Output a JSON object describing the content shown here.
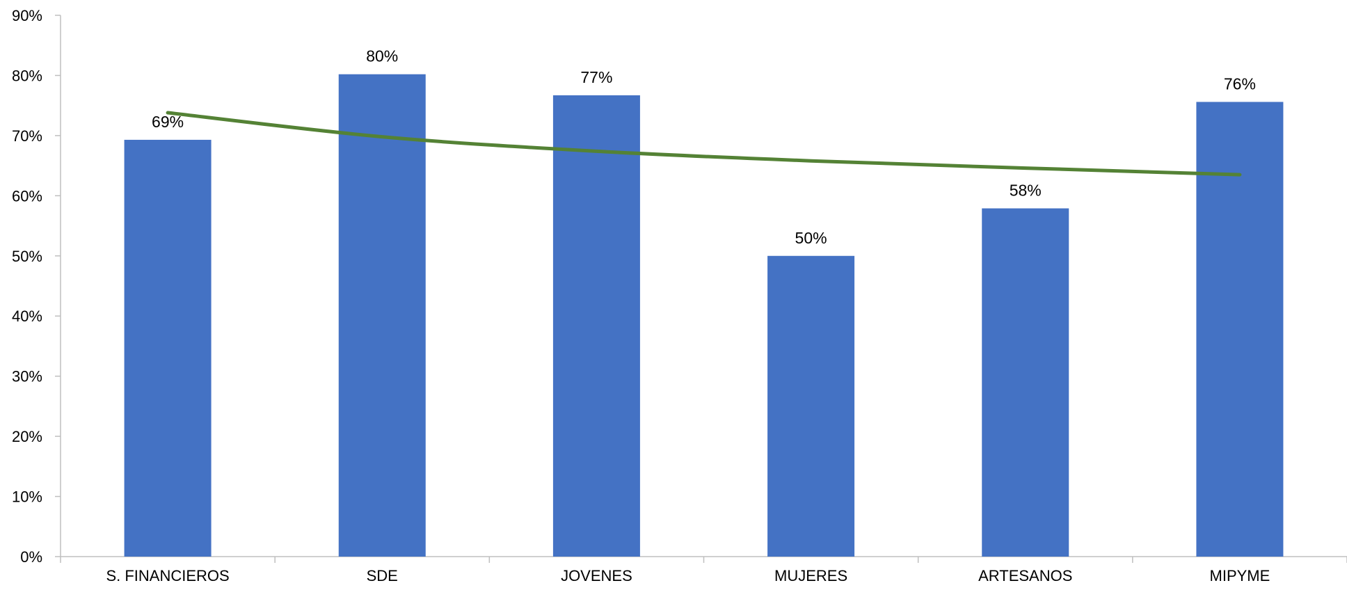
{
  "chart_data": {
    "type": "bar",
    "categories": [
      "S. FINANCIEROS",
      "SDE",
      "JOVENES",
      "MUJERES",
      "ARTESANOS",
      "MIPYME"
    ],
    "values": [
      69.3,
      80.2,
      76.7,
      50.0,
      57.9,
      75.6
    ],
    "data_labels": [
      "69%",
      "80%",
      "77%",
      "50%",
      "58%",
      "76%"
    ],
    "ylim": [
      0,
      90
    ],
    "yticks": [
      0,
      10,
      20,
      30,
      40,
      50,
      60,
      70,
      80,
      90
    ],
    "ytick_labels": [
      "0%",
      "10%",
      "20%",
      "30%",
      "40%",
      "50%",
      "60%",
      "70%",
      "80%",
      "90%"
    ],
    "title": "",
    "xlabel": "",
    "ylabel": "",
    "grid": false,
    "legend": "none",
    "bar_color": "#4472C4",
    "trendline": {
      "type": "logarithmic",
      "color": "#548235",
      "points": [
        73.8,
        69.8,
        67.4,
        65.8,
        64.6,
        63.5
      ]
    }
  }
}
